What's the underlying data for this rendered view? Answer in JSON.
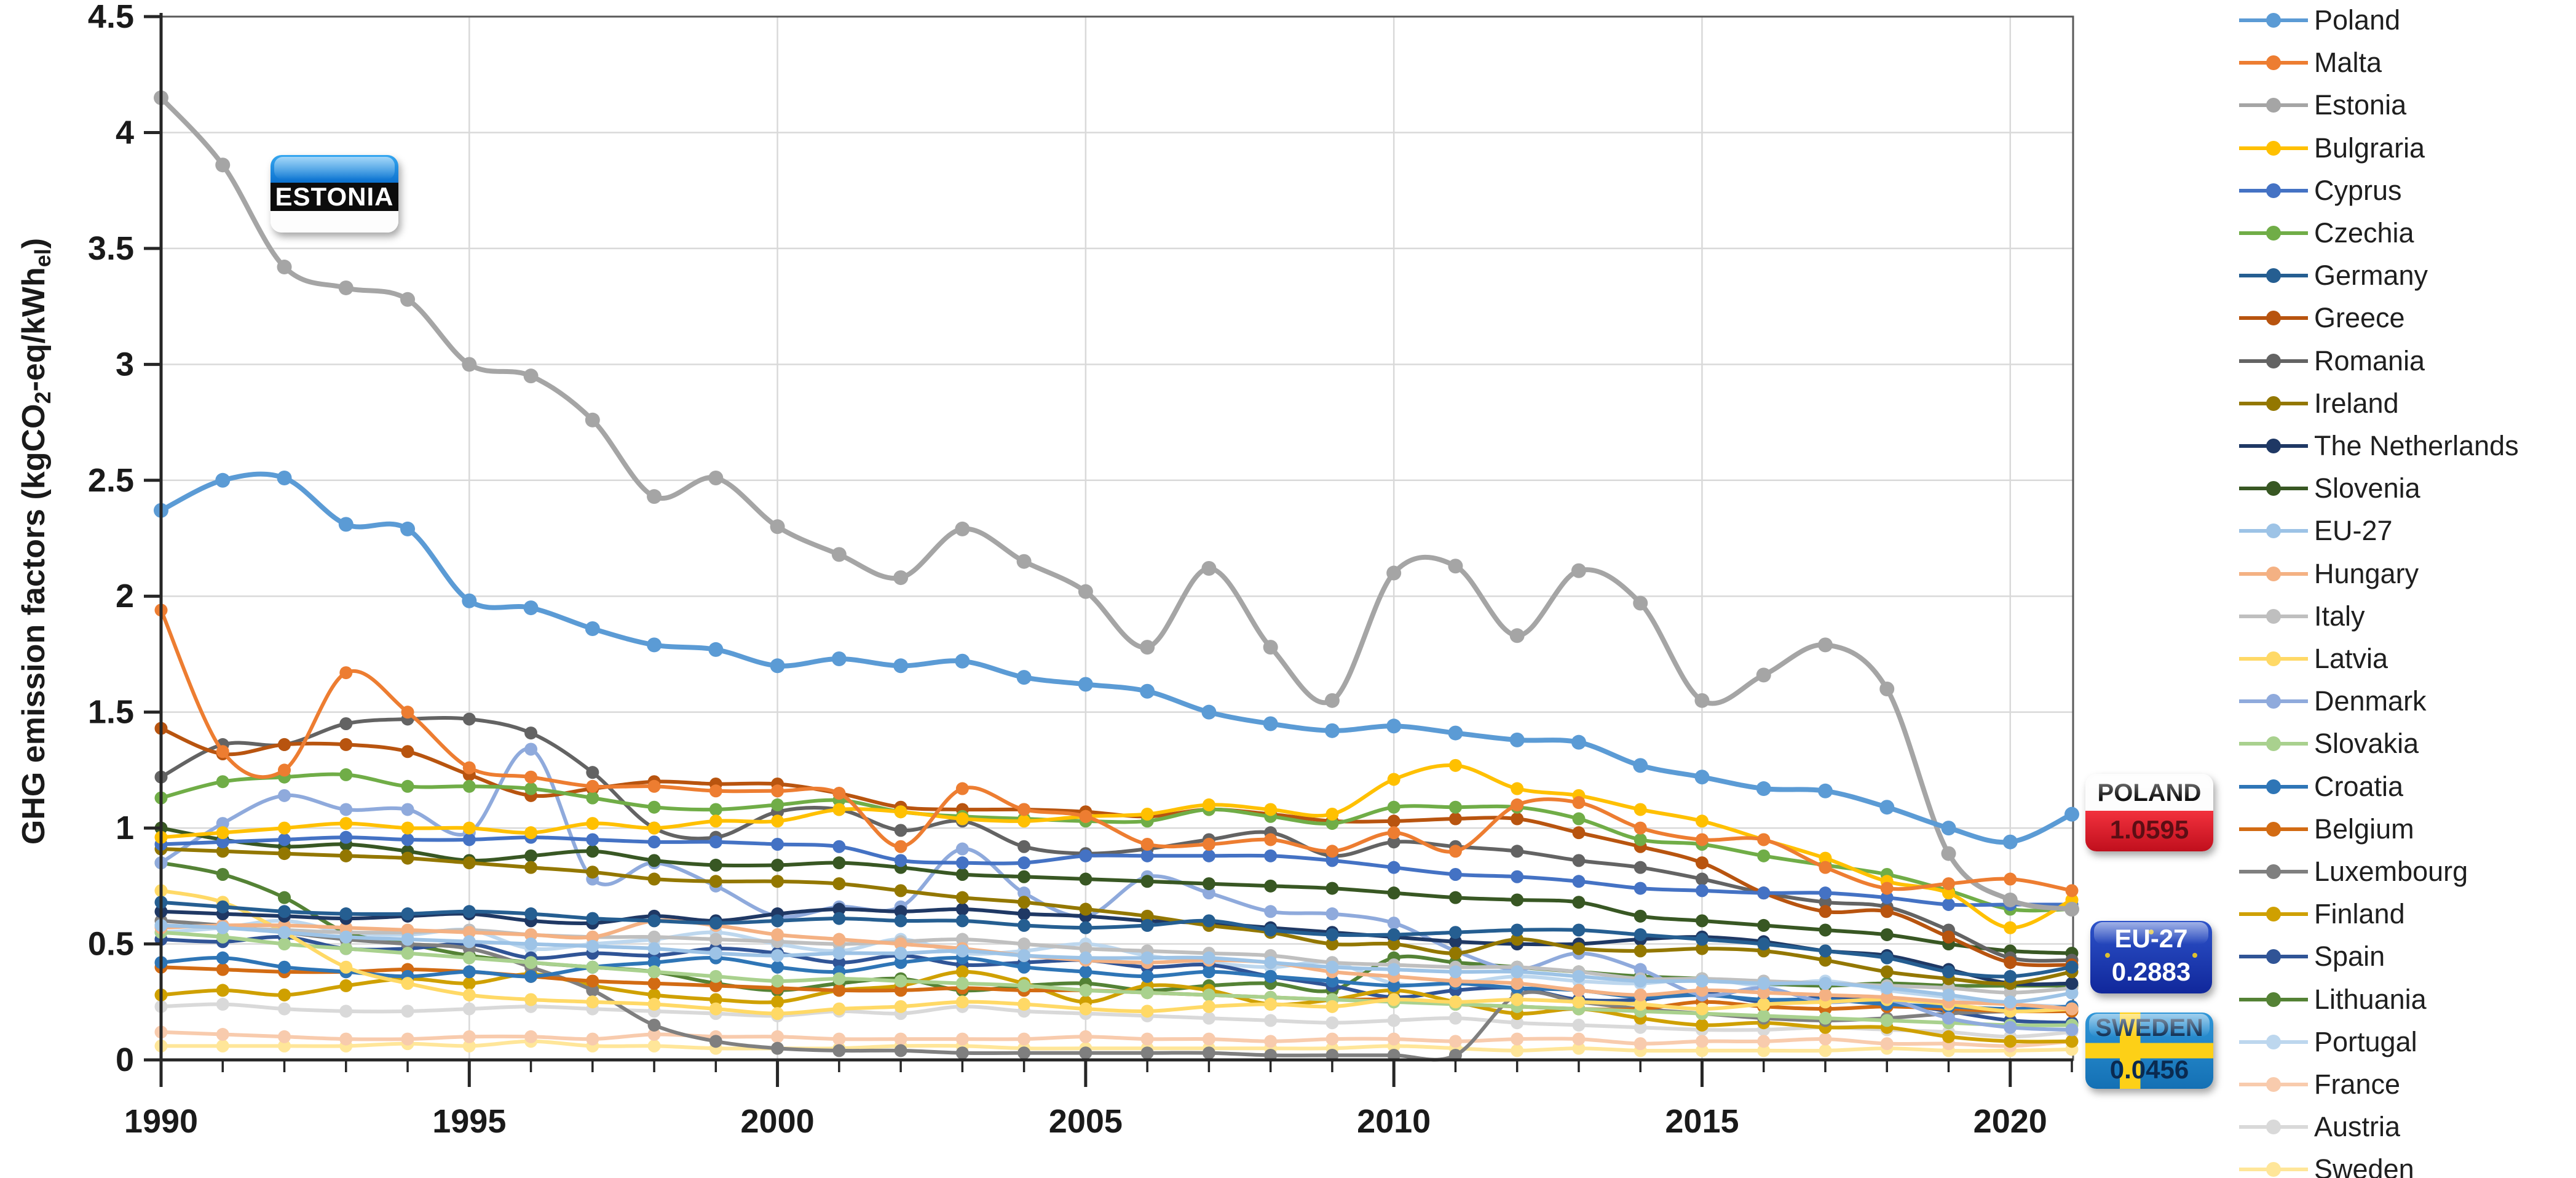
{
  "page": {
    "background": "#ffffff"
  },
  "y_axis": {
    "title_pre": "GHG emission factors (kgCO",
    "title_sub1": "2",
    "title_mid": "-eq/kWh",
    "title_sub2": "el",
    "title_post": ")",
    "tick_labels": [
      "4.5",
      "4",
      "3.5",
      "3",
      "2.5",
      "2",
      "1.5",
      "1",
      "0.5",
      "0"
    ],
    "tick_values": [
      4.5,
      4,
      3.5,
      3,
      2.5,
      2,
      1.5,
      1,
      0.5,
      0
    ]
  },
  "x_axis": {
    "tick_labels": [
      "1990",
      "1995",
      "2000",
      "2005",
      "2010",
      "2015",
      "2020"
    ],
    "tick_values": [
      1990,
      1995,
      2000,
      2005,
      2010,
      2015,
      2020
    ]
  },
  "callouts": {
    "estonia": {
      "label": "ESTONIA",
      "flag_colors": [
        "#0d72cf",
        "#0c0c0c",
        "#ffffff"
      ]
    },
    "poland": {
      "label": "POLAND",
      "value": "1.0595",
      "flag_colors": [
        "#ffffff",
        "#d6121f"
      ]
    },
    "eu27": {
      "label": "EU-27",
      "value": "0.2883",
      "flag_colors": [
        "#10279b",
        "#ffd617"
      ]
    },
    "sweden": {
      "label": "SWEDEN",
      "value": "0.0456",
      "flag_colors": [
        "#1470b4",
        "#fdd017"
      ]
    }
  },
  "chart_data": {
    "type": "line",
    "title": "",
    "xlabel": "",
    "ylabel": "GHG emission factors (kgCO2-eq/kWhel)",
    "xlim": [
      1990,
      2021
    ],
    "ylim": [
      0,
      4.5
    ],
    "grid": true,
    "legend_position": "right",
    "marker": "circle",
    "smooth": true,
    "x": [
      1990,
      1991,
      1992,
      1993,
      1994,
      1995,
      1996,
      1997,
      1998,
      1999,
      2000,
      2001,
      2002,
      2003,
      2004,
      2005,
      2006,
      2007,
      2008,
      2009,
      2010,
      2011,
      2012,
      2013,
      2014,
      2015,
      2016,
      2017,
      2018,
      2019,
      2020,
      2021
    ],
    "series": [
      {
        "name": "Poland",
        "color": "#5B9BD5",
        "width": 8,
        "values": [
          2.37,
          2.5,
          2.51,
          2.31,
          2.29,
          1.98,
          1.95,
          1.86,
          1.79,
          1.77,
          1.7,
          1.73,
          1.7,
          1.72,
          1.65,
          1.62,
          1.59,
          1.5,
          1.45,
          1.42,
          1.44,
          1.41,
          1.38,
          1.37,
          1.27,
          1.22,
          1.17,
          1.16,
          1.09,
          1.0,
          0.94,
          1.0595
        ]
      },
      {
        "name": "Malta",
        "color": "#ED7D31",
        "width": 6,
        "values": [
          1.94,
          1.33,
          1.25,
          1.67,
          1.5,
          1.26,
          1.22,
          1.18,
          1.18,
          1.16,
          1.16,
          1.15,
          0.92,
          1.17,
          1.08,
          1.05,
          0.93,
          0.93,
          0.95,
          0.9,
          0.98,
          0.9,
          1.1,
          1.11,
          1.0,
          0.95,
          0.95,
          0.83,
          0.74,
          0.76,
          0.78,
          0.73
        ]
      },
      {
        "name": "Estonia",
        "color": "#A5A5A5",
        "width": 8,
        "values": [
          4.15,
          3.86,
          3.42,
          3.33,
          3.28,
          3.0,
          2.95,
          2.76,
          2.43,
          2.51,
          2.3,
          2.18,
          2.08,
          2.29,
          2.15,
          2.02,
          1.78,
          2.12,
          1.78,
          1.55,
          2.1,
          2.13,
          1.83,
          2.11,
          1.97,
          1.55,
          1.66,
          1.79,
          1.6,
          0.89,
          0.69,
          0.65
        ]
      },
      {
        "name": "Bulgraria",
        "color": "#FFC000",
        "width": 6,
        "values": [
          0.96,
          0.98,
          1.0,
          1.02,
          1.0,
          1.0,
          0.98,
          1.02,
          1.0,
          1.03,
          1.03,
          1.08,
          1.07,
          1.04,
          1.03,
          1.05,
          1.06,
          1.1,
          1.08,
          1.06,
          1.21,
          1.27,
          1.17,
          1.14,
          1.08,
          1.03,
          0.95,
          0.87,
          0.77,
          0.72,
          0.57,
          0.69
        ]
      },
      {
        "name": "Cyprus",
        "color": "#4472C4",
        "width": 6,
        "values": [
          0.93,
          0.94,
          0.95,
          0.96,
          0.95,
          0.95,
          0.96,
          0.95,
          0.94,
          0.94,
          0.93,
          0.92,
          0.86,
          0.85,
          0.85,
          0.88,
          0.88,
          0.88,
          0.88,
          0.86,
          0.83,
          0.8,
          0.79,
          0.77,
          0.74,
          0.73,
          0.72,
          0.72,
          0.7,
          0.67,
          0.67,
          0.67
        ]
      },
      {
        "name": "Czechia",
        "color": "#70AD47",
        "width": 6,
        "values": [
          1.13,
          1.2,
          1.22,
          1.23,
          1.18,
          1.18,
          1.17,
          1.13,
          1.09,
          1.08,
          1.1,
          1.12,
          1.07,
          1.05,
          1.04,
          1.03,
          1.03,
          1.08,
          1.05,
          1.02,
          1.09,
          1.09,
          1.09,
          1.04,
          0.95,
          0.93,
          0.88,
          0.84,
          0.8,
          0.73,
          0.65,
          0.65
        ]
      },
      {
        "name": "Germany",
        "color": "#255E91",
        "width": 6,
        "values": [
          0.68,
          0.66,
          0.64,
          0.63,
          0.63,
          0.64,
          0.63,
          0.61,
          0.6,
          0.59,
          0.6,
          0.61,
          0.6,
          0.6,
          0.58,
          0.57,
          0.58,
          0.6,
          0.56,
          0.54,
          0.54,
          0.55,
          0.56,
          0.56,
          0.54,
          0.52,
          0.5,
          0.47,
          0.44,
          0.38,
          0.36,
          0.4
        ]
      },
      {
        "name": "Greece",
        "color": "#B8540F",
        "width": 6,
        "values": [
          1.43,
          1.32,
          1.36,
          1.36,
          1.33,
          1.23,
          1.14,
          1.17,
          1.2,
          1.19,
          1.19,
          1.15,
          1.09,
          1.08,
          1.08,
          1.07,
          1.05,
          1.08,
          1.06,
          1.03,
          1.03,
          1.04,
          1.04,
          0.98,
          0.92,
          0.85,
          0.72,
          0.64,
          0.64,
          0.53,
          0.42,
          0.41
        ]
      },
      {
        "name": "Romania",
        "color": "#636363",
        "width": 6,
        "values": [
          1.22,
          1.36,
          1.36,
          1.45,
          1.47,
          1.47,
          1.41,
          1.24,
          1.0,
          0.96,
          1.07,
          1.08,
          0.99,
          1.03,
          0.92,
          0.89,
          0.91,
          0.95,
          0.98,
          0.88,
          0.94,
          0.92,
          0.9,
          0.86,
          0.83,
          0.78,
          0.72,
          0.68,
          0.66,
          0.56,
          0.44,
          0.43
        ]
      },
      {
        "name": "Ireland",
        "color": "#937700",
        "width": 6,
        "values": [
          0.91,
          0.9,
          0.89,
          0.88,
          0.87,
          0.85,
          0.83,
          0.81,
          0.78,
          0.77,
          0.77,
          0.76,
          0.73,
          0.7,
          0.68,
          0.65,
          0.62,
          0.58,
          0.55,
          0.5,
          0.5,
          0.46,
          0.52,
          0.48,
          0.47,
          0.48,
          0.47,
          0.43,
          0.38,
          0.35,
          0.33,
          0.38
        ]
      },
      {
        "name": "The Netherlands",
        "color": "#1F3864",
        "width": 6,
        "values": [
          0.64,
          0.63,
          0.62,
          0.61,
          0.62,
          0.63,
          0.6,
          0.59,
          0.62,
          0.6,
          0.63,
          0.65,
          0.64,
          0.65,
          0.63,
          0.62,
          0.6,
          0.59,
          0.57,
          0.55,
          0.53,
          0.51,
          0.5,
          0.5,
          0.52,
          0.53,
          0.51,
          0.47,
          0.45,
          0.39,
          0.33,
          0.33
        ]
      },
      {
        "name": "Slovenia",
        "color": "#385723",
        "width": 6,
        "values": [
          1.0,
          0.95,
          0.92,
          0.93,
          0.9,
          0.86,
          0.88,
          0.9,
          0.86,
          0.84,
          0.84,
          0.85,
          0.83,
          0.8,
          0.79,
          0.78,
          0.77,
          0.76,
          0.75,
          0.74,
          0.72,
          0.7,
          0.69,
          0.68,
          0.62,
          0.6,
          0.58,
          0.56,
          0.54,
          0.5,
          0.47,
          0.46
        ]
      },
      {
        "name": "EU-27",
        "color": "#9DC3E6",
        "width": 6,
        "values": [
          0.58,
          0.57,
          0.55,
          0.53,
          0.52,
          0.51,
          0.5,
          0.49,
          0.48,
          0.46,
          0.45,
          0.46,
          0.46,
          0.47,
          0.45,
          0.44,
          0.44,
          0.44,
          0.42,
          0.4,
          0.39,
          0.38,
          0.38,
          0.36,
          0.34,
          0.34,
          0.33,
          0.33,
          0.31,
          0.28,
          0.25,
          0.2883
        ]
      },
      {
        "name": "Hungary",
        "color": "#F4B183",
        "width": 6,
        "values": [
          0.57,
          0.58,
          0.58,
          0.57,
          0.56,
          0.55,
          0.54,
          0.53,
          0.6,
          0.58,
          0.54,
          0.52,
          0.5,
          0.48,
          0.45,
          0.43,
          0.42,
          0.43,
          0.42,
          0.38,
          0.36,
          0.34,
          0.33,
          0.3,
          0.28,
          0.3,
          0.29,
          0.28,
          0.27,
          0.25,
          0.24,
          0.22
        ]
      },
      {
        "name": "Italy",
        "color": "#BFBFBF",
        "width": 6,
        "values": [
          0.58,
          0.57,
          0.56,
          0.55,
          0.55,
          0.56,
          0.54,
          0.53,
          0.53,
          0.52,
          0.51,
          0.5,
          0.51,
          0.52,
          0.5,
          0.48,
          0.47,
          0.46,
          0.45,
          0.42,
          0.41,
          0.4,
          0.4,
          0.38,
          0.35,
          0.35,
          0.34,
          0.33,
          0.32,
          0.31,
          0.29,
          0.31
        ]
      },
      {
        "name": "Latvia",
        "color": "#FFD966",
        "width": 6,
        "values": [
          0.73,
          0.68,
          0.55,
          0.4,
          0.33,
          0.28,
          0.26,
          0.25,
          0.24,
          0.22,
          0.2,
          0.22,
          0.23,
          0.25,
          0.24,
          0.22,
          0.21,
          0.23,
          0.24,
          0.23,
          0.26,
          0.25,
          0.26,
          0.25,
          0.24,
          0.22,
          0.24,
          0.25,
          0.26,
          0.24,
          0.21,
          0.22
        ]
      },
      {
        "name": "Denmark",
        "color": "#8FAADC",
        "width": 6,
        "values": [
          0.85,
          1.02,
          1.14,
          1.08,
          1.08,
          0.98,
          1.34,
          0.78,
          0.85,
          0.75,
          0.62,
          0.66,
          0.66,
          0.91,
          0.72,
          0.62,
          0.79,
          0.72,
          0.64,
          0.63,
          0.59,
          0.47,
          0.39,
          0.46,
          0.39,
          0.28,
          0.31,
          0.25,
          0.26,
          0.18,
          0.14,
          0.13
        ]
      },
      {
        "name": "Slovakia",
        "color": "#A9D18E",
        "width": 6,
        "values": [
          0.55,
          0.53,
          0.5,
          0.48,
          0.46,
          0.44,
          0.42,
          0.4,
          0.38,
          0.36,
          0.34,
          0.35,
          0.34,
          0.33,
          0.32,
          0.3,
          0.29,
          0.28,
          0.27,
          0.26,
          0.25,
          0.24,
          0.23,
          0.22,
          0.21,
          0.2,
          0.19,
          0.18,
          0.17,
          0.16,
          0.15,
          0.15
        ]
      },
      {
        "name": "Croatia",
        "color": "#2E75B6",
        "width": 6,
        "values": [
          0.42,
          0.44,
          0.4,
          0.38,
          0.36,
          0.38,
          0.36,
          0.4,
          0.42,
          0.44,
          0.4,
          0.38,
          0.42,
          0.44,
          0.4,
          0.38,
          0.36,
          0.38,
          0.36,
          0.34,
          0.32,
          0.33,
          0.31,
          0.3,
          0.27,
          0.28,
          0.26,
          0.26,
          0.24,
          0.23,
          0.22,
          0.23
        ]
      },
      {
        "name": "Belgium",
        "color": "#D26B13",
        "width": 6,
        "values": [
          0.4,
          0.39,
          0.38,
          0.38,
          0.39,
          0.38,
          0.36,
          0.34,
          0.33,
          0.32,
          0.31,
          0.3,
          0.3,
          0.31,
          0.3,
          0.3,
          0.29,
          0.28,
          0.27,
          0.26,
          0.26,
          0.24,
          0.23,
          0.22,
          0.22,
          0.25,
          0.23,
          0.22,
          0.23,
          0.22,
          0.21,
          0.21
        ]
      },
      {
        "name": "Luxembourg",
        "color": "#7F7F7F",
        "width": 6,
        "values": [
          0.6,
          0.58,
          0.55,
          0.52,
          0.5,
          0.48,
          0.4,
          0.3,
          0.15,
          0.08,
          0.05,
          0.04,
          0.04,
          0.03,
          0.03,
          0.03,
          0.03,
          0.03,
          0.02,
          0.02,
          0.02,
          0.02,
          0.28,
          0.25,
          0.22,
          0.2,
          0.18,
          0.17,
          0.18,
          0.2,
          0.21,
          0.22
        ]
      },
      {
        "name": "Finland",
        "color": "#CFA000",
        "width": 6,
        "values": [
          0.28,
          0.3,
          0.28,
          0.32,
          0.35,
          0.33,
          0.37,
          0.32,
          0.28,
          0.26,
          0.25,
          0.3,
          0.32,
          0.38,
          0.33,
          0.25,
          0.32,
          0.3,
          0.24,
          0.26,
          0.3,
          0.25,
          0.2,
          0.22,
          0.18,
          0.15,
          0.16,
          0.14,
          0.14,
          0.1,
          0.08,
          0.08
        ]
      },
      {
        "name": "Spain",
        "color": "#305496",
        "width": 6,
        "values": [
          0.52,
          0.51,
          0.53,
          0.48,
          0.48,
          0.5,
          0.44,
          0.46,
          0.45,
          0.48,
          0.46,
          0.42,
          0.45,
          0.41,
          0.42,
          0.43,
          0.4,
          0.41,
          0.36,
          0.32,
          0.27,
          0.3,
          0.31,
          0.26,
          0.26,
          0.29,
          0.25,
          0.27,
          0.25,
          0.21,
          0.17,
          0.16
        ]
      },
      {
        "name": "Lithuania",
        "color": "#548235",
        "width": 6,
        "values": [
          0.85,
          0.8,
          0.7,
          0.55,
          0.5,
          0.45,
          0.42,
          0.4,
          0.38,
          0.33,
          0.3,
          0.33,
          0.35,
          0.3,
          0.32,
          0.33,
          0.3,
          0.32,
          0.33,
          0.3,
          0.44,
          0.42,
          0.4,
          0.38,
          0.36,
          0.35,
          0.33,
          0.32,
          0.33,
          0.32,
          0.32,
          0.32
        ]
      },
      {
        "name": "Portugal",
        "color": "#BDD7EE",
        "width": 6,
        "values": [
          0.55,
          0.57,
          0.6,
          0.55,
          0.54,
          0.56,
          0.48,
          0.5,
          0.52,
          0.55,
          0.5,
          0.47,
          0.52,
          0.46,
          0.47,
          0.5,
          0.45,
          0.42,
          0.4,
          0.42,
          0.33,
          0.33,
          0.36,
          0.34,
          0.33,
          0.35,
          0.32,
          0.34,
          0.3,
          0.27,
          0.24,
          0.23
        ]
      },
      {
        "name": "France",
        "color": "#F8CBAD",
        "width": 6,
        "values": [
          0.12,
          0.11,
          0.1,
          0.09,
          0.09,
          0.1,
          0.1,
          0.09,
          0.11,
          0.1,
          0.1,
          0.09,
          0.09,
          0.09,
          0.09,
          0.1,
          0.09,
          0.09,
          0.08,
          0.09,
          0.09,
          0.08,
          0.09,
          0.09,
          0.07,
          0.08,
          0.08,
          0.09,
          0.07,
          0.07,
          0.06,
          0.08
        ]
      },
      {
        "name": "Austria",
        "color": "#D9D9D9",
        "width": 6,
        "values": [
          0.23,
          0.24,
          0.22,
          0.21,
          0.21,
          0.22,
          0.23,
          0.22,
          0.21,
          0.2,
          0.19,
          0.21,
          0.2,
          0.23,
          0.21,
          0.2,
          0.19,
          0.18,
          0.17,
          0.16,
          0.17,
          0.18,
          0.16,
          0.15,
          0.14,
          0.13,
          0.13,
          0.14,
          0.13,
          0.12,
          0.1,
          0.12
        ]
      },
      {
        "name": "Sweden",
        "color": "#FFE699",
        "width": 6,
        "values": [
          0.06,
          0.06,
          0.06,
          0.06,
          0.07,
          0.06,
          0.08,
          0.06,
          0.06,
          0.05,
          0.05,
          0.05,
          0.06,
          0.06,
          0.05,
          0.05,
          0.05,
          0.05,
          0.05,
          0.05,
          0.06,
          0.05,
          0.04,
          0.05,
          0.04,
          0.04,
          0.04,
          0.04,
          0.05,
          0.04,
          0.04,
          0.0456
        ]
      }
    ]
  }
}
